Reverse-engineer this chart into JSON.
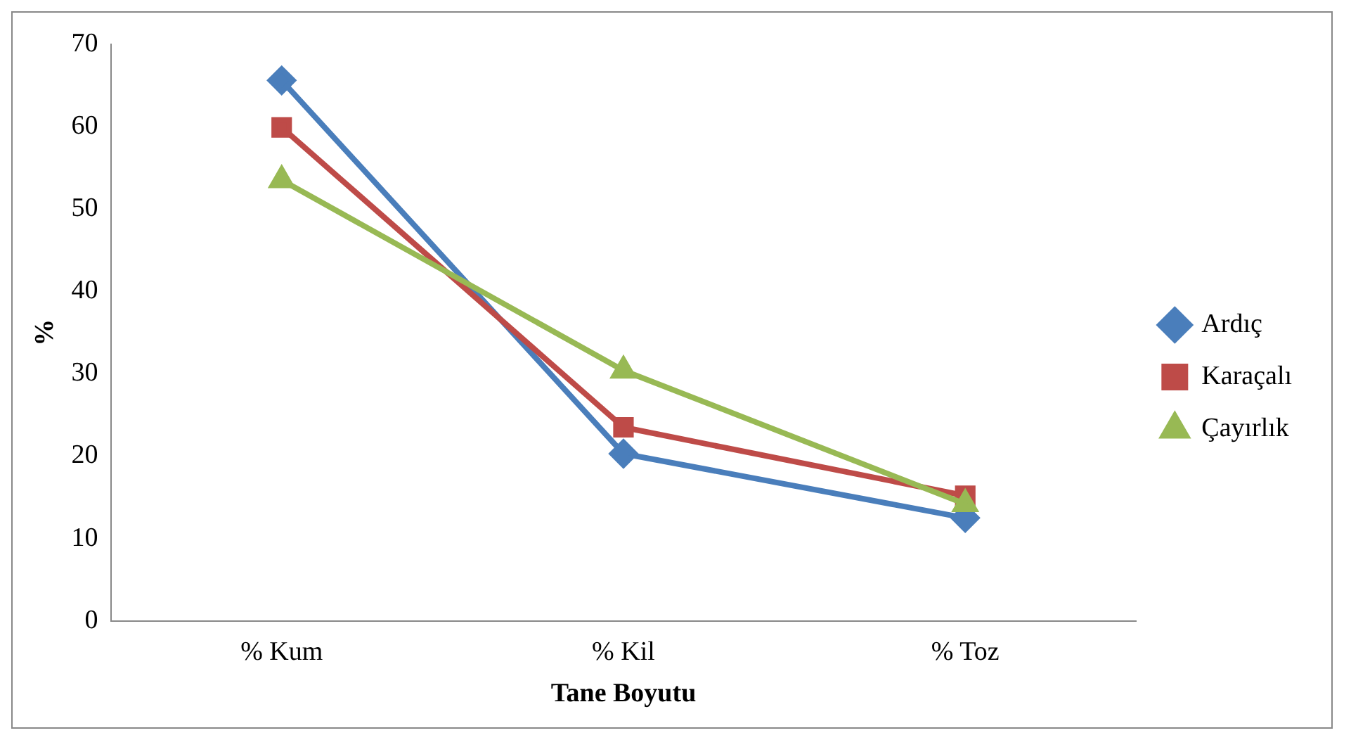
{
  "chart_data": {
    "type": "line",
    "xlabel": "Tane Boyutu",
    "ylabel": "%",
    "categories": [
      "% Kum",
      "% Kil",
      "% Toz"
    ],
    "series": [
      {
        "name": "Ardıç",
        "color": "#4a7ebb",
        "marker": "diamond",
        "values": [
          65.6,
          20.3,
          12.5
        ]
      },
      {
        "name": "Karaçalı",
        "color": "#be4b48",
        "marker": "square",
        "values": [
          59.9,
          23.5,
          15.2
        ]
      },
      {
        "name": "Çayırlık",
        "color": "#98b954",
        "marker": "triangle",
        "values": [
          53.5,
          30.4,
          14.2
        ]
      }
    ],
    "ylim": [
      0,
      70
    ],
    "yticks": [
      0,
      10,
      20,
      30,
      40,
      50,
      60,
      70
    ],
    "grid": false,
    "legend": "right"
  }
}
